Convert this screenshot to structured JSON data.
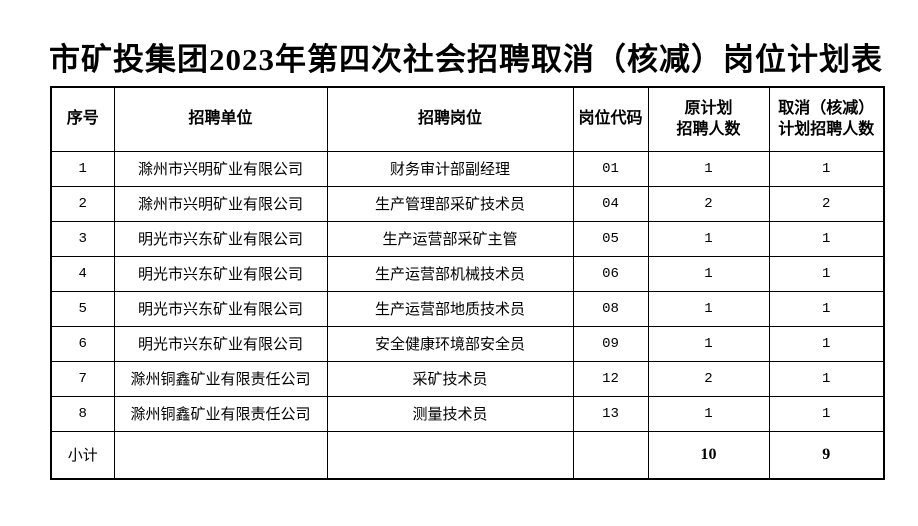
{
  "title": "市矿投集团2023年第四次社会招聘取消（核减）岗位计划表",
  "table": {
    "headers": [
      "序号",
      "招聘单位",
      "招聘岗位",
      "岗位代码",
      "原计划\n招聘人数",
      "取消（核减）\n计划招聘人数"
    ],
    "rows": [
      [
        "1",
        "滁州市兴明矿业有限公司",
        "财务审计部副经理",
        "01",
        "1",
        "1"
      ],
      [
        "2",
        "滁州市兴明矿业有限公司",
        "生产管理部采矿技术员",
        "04",
        "2",
        "2"
      ],
      [
        "3",
        "明光市兴东矿业有限公司",
        "生产运营部采矿主管",
        "05",
        "1",
        "1"
      ],
      [
        "4",
        "明光市兴东矿业有限公司",
        "生产运营部机械技术员",
        "06",
        "1",
        "1"
      ],
      [
        "5",
        "明光市兴东矿业有限公司",
        "生产运营部地质技术员",
        "08",
        "1",
        "1"
      ],
      [
        "6",
        "明光市兴东矿业有限公司",
        "安全健康环境部安全员",
        "09",
        "1",
        "1"
      ],
      [
        "7",
        "滁州铜鑫矿业有限责任公司",
        "采矿技术员",
        "12",
        "2",
        "1"
      ],
      [
        "8",
        "滁州铜鑫矿业有限责任公司",
        "测量技术员",
        "13",
        "1",
        "1"
      ]
    ],
    "subtotal": {
      "label": "小计",
      "empty_unit": "",
      "empty_position": "",
      "empty_code": "",
      "original_total": "10",
      "cancel_total": "9"
    }
  },
  "colors": {
    "background": "#ffffff",
    "text": "#000000",
    "border": "#000000"
  }
}
